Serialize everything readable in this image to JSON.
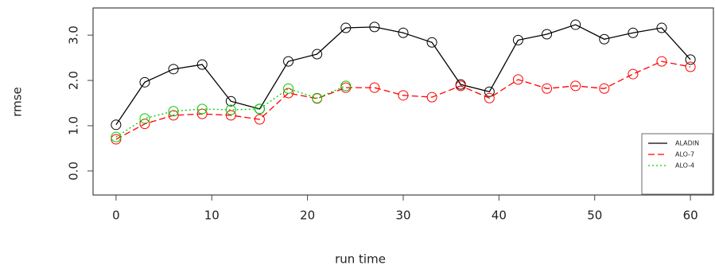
{
  "chart_data": {
    "type": "line",
    "x": [
      0,
      3,
      6,
      9,
      12,
      15,
      18,
      21,
      24,
      27,
      30,
      33,
      36,
      39,
      42,
      45,
      48,
      51,
      54,
      57,
      60
    ],
    "series": [
      {
        "name": "ALADIN",
        "color": "#000000",
        "dash": "solid",
        "values": [
          1.02,
          1.96,
          2.25,
          2.35,
          1.54,
          1.37,
          2.42,
          2.58,
          3.16,
          3.18,
          3.05,
          2.84,
          1.91,
          1.75,
          2.89,
          3.02,
          3.23,
          2.91,
          3.05,
          3.16,
          2.46
        ]
      },
      {
        "name": "ALO-7",
        "color": "#ff0000",
        "dash": "dashed",
        "values": [
          0.7,
          1.04,
          1.23,
          1.26,
          1.23,
          1.14,
          1.72,
          1.6,
          1.84,
          1.84,
          1.67,
          1.63,
          1.88,
          1.61,
          2.02,
          1.82,
          1.88,
          1.82,
          2.14,
          2.42,
          2.3
        ]
      },
      {
        "name": "ALO-4",
        "color": "#00cc00",
        "dash": "dotted",
        "values": [
          0.75,
          1.16,
          1.32,
          1.37,
          1.35,
          1.37,
          1.82,
          1.61,
          1.88,
          null,
          null,
          null,
          null,
          null,
          null,
          null,
          null,
          null,
          null,
          null,
          null
        ]
      }
    ],
    "xlabel": "run time",
    "ylabel": "rmse",
    "xlim": [
      -2.4,
      62.4
    ],
    "xticks": [
      0,
      10,
      20,
      30,
      40,
      50,
      60
    ],
    "ylim": [
      -0.53,
      3.6
    ],
    "yticks": [
      {
        "value": 0,
        "label": "0.0"
      },
      {
        "value": 1,
        "label": "1.0"
      },
      {
        "value": 2,
        "label": "2.0"
      },
      {
        "value": 3,
        "label": "3.0"
      }
    ],
    "legend": "bottom-right"
  }
}
